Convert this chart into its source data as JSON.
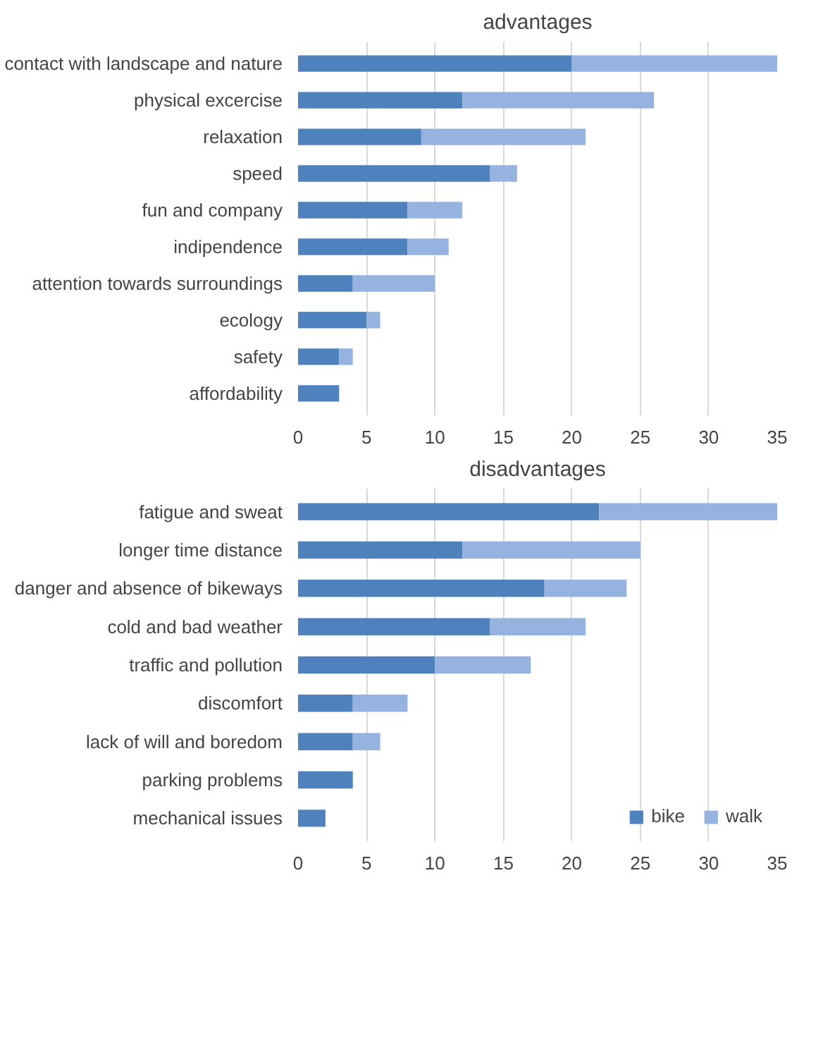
{
  "chart_data": [
    {
      "type": "bar",
      "title": "advantages",
      "orientation": "horizontal",
      "stacked": true,
      "categories": [
        "contact with landscape and nature",
        "physical excercise",
        "relaxation",
        "speed",
        "fun and company",
        "indipendence",
        "attention towards surroundings",
        "ecology",
        "safety",
        "affordability"
      ],
      "series": [
        {
          "color": "#4f81bd",
          "values": [
            20,
            12,
            9,
            14,
            8,
            8,
            4,
            5,
            3,
            3
          ]
        },
        {
          "color": "#95b3de",
          "values": [
            15,
            14,
            12,
            2,
            4,
            3,
            6,
            1,
            1,
            0
          ]
        }
      ],
      "xlim": [
        0,
        35
      ],
      "xticks": [
        0,
        5,
        10,
        15,
        20,
        25,
        30,
        35
      ],
      "grid": "x"
    },
    {
      "type": "bar",
      "title": "disadvantages",
      "orientation": "horizontal",
      "stacked": true,
      "categories": [
        "fatigue and sweat",
        "longer time distance",
        "danger and absence of bikeways",
        "cold and bad weather",
        "traffic and pollution",
        "discomfort",
        "lack of will and boredom",
        "parking problems",
        "mechanical issues"
      ],
      "series": [
        {
          "name": "bike",
          "color": "#4f81bd",
          "values": [
            22,
            12,
            18,
            14,
            10,
            4,
            4,
            4,
            2
          ]
        },
        {
          "name": "walk",
          "color": "#95b3de",
          "values": [
            13,
            13,
            6,
            7,
            7,
            4,
            2,
            0,
            0
          ]
        }
      ],
      "xlim": [
        0,
        35
      ],
      "xticks": [
        0,
        5,
        10,
        15,
        20,
        25,
        30,
        35
      ],
      "grid": "x",
      "legend": "bottom right"
    }
  ]
}
